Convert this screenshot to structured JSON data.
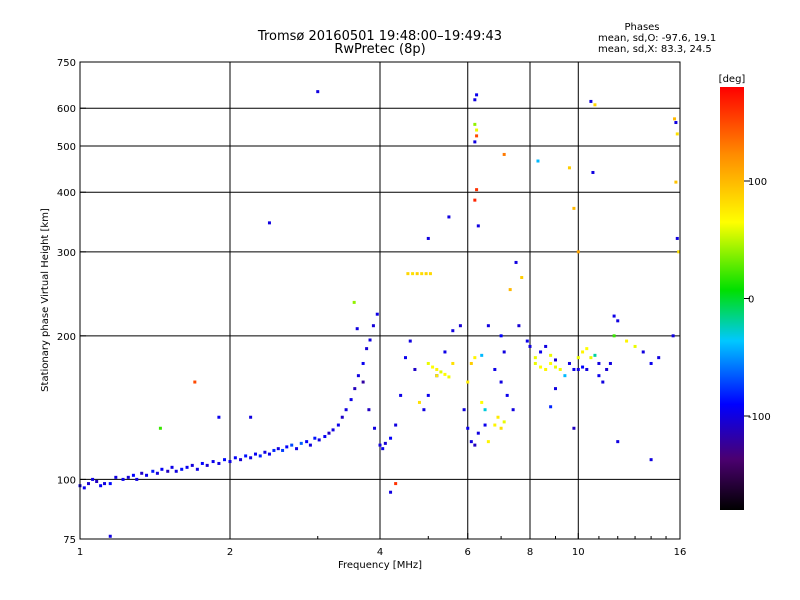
{
  "title": "Tromsø 20160501 19:48:00–19:49:43",
  "subtitle": "RwPretec (8p)",
  "phase_info": {
    "heading": "Phases",
    "line_o": "mean, sd,O: -97.6, 19.1",
    "line_x": "mean, sd,X:  83.3, 24.5"
  },
  "chart_data": {
    "type": "scatter",
    "title": "Tromsø 20160501 19:48:00–19:49:43",
    "subtitle": "RwPretec (8p)",
    "xlabel": "Frequency [MHz]",
    "ylabel": "Stationary phase Virtual Height [km]",
    "xscale": "log",
    "yscale": "log",
    "xlim": [
      1,
      16
    ],
    "ylim": [
      75,
      750
    ],
    "x_ticks": [
      1,
      2,
      4,
      6,
      8,
      10,
      16
    ],
    "x_tick_labels": [
      "1",
      "2",
      "4",
      "6",
      "8",
      "10",
      "16"
    ],
    "y_ticks": [
      75,
      100,
      200,
      300,
      400,
      500,
      600,
      750
    ],
    "y_tick_labels": [
      "75",
      "100",
      "200",
      "300",
      "400",
      "500",
      "600",
      "750"
    ],
    "grid": true,
    "colorbar": {
      "label": "[deg]",
      "range": [
        -180,
        180
      ],
      "ticks": [
        -100,
        0,
        100
      ],
      "tick_labels": [
        "-100",
        "0",
        "100"
      ]
    },
    "points": [
      [
        1.0,
        97,
        -100
      ],
      [
        1.02,
        96,
        -95
      ],
      [
        1.04,
        98,
        -105
      ],
      [
        1.06,
        100,
        -98
      ],
      [
        1.08,
        99,
        -110
      ],
      [
        1.1,
        97,
        -92
      ],
      [
        1.12,
        98,
        -100
      ],
      [
        1.15,
        98,
        -88
      ],
      [
        1.18,
        101,
        -100
      ],
      [
        1.22,
        100,
        -96
      ],
      [
        1.25,
        101,
        -104
      ],
      [
        1.28,
        102,
        -90
      ],
      [
        1.3,
        100,
        -100
      ],
      [
        1.33,
        103,
        -108
      ],
      [
        1.36,
        102,
        -96
      ],
      [
        1.4,
        104,
        -85
      ],
      [
        1.43,
        103,
        -100
      ],
      [
        1.46,
        105,
        -92
      ],
      [
        1.5,
        104,
        -110
      ],
      [
        1.53,
        106,
        -98
      ],
      [
        1.56,
        104,
        -100
      ],
      [
        1.6,
        105,
        -86
      ],
      [
        1.64,
        106,
        -95
      ],
      [
        1.68,
        107,
        -102
      ],
      [
        1.72,
        105,
        -99
      ],
      [
        1.76,
        108,
        -90
      ],
      [
        1.8,
        107,
        -104
      ],
      [
        1.85,
        109,
        -96
      ],
      [
        1.9,
        108,
        -100
      ],
      [
        1.95,
        110,
        -88
      ],
      [
        2.0,
        109,
        -98
      ],
      [
        2.05,
        111,
        -92
      ],
      [
        2.1,
        110,
        -105
      ],
      [
        2.15,
        112,
        -86
      ],
      [
        2.2,
        111,
        -100
      ],
      [
        2.25,
        113,
        -94
      ],
      [
        2.3,
        112,
        -82
      ],
      [
        2.35,
        114,
        -100
      ],
      [
        2.4,
        113,
        -96
      ],
      [
        2.45,
        115,
        -80
      ],
      [
        2.5,
        116,
        -100
      ],
      [
        2.55,
        115,
        -74
      ],
      [
        2.6,
        117,
        -90
      ],
      [
        2.66,
        118,
        -70
      ],
      [
        2.72,
        116,
        -98
      ],
      [
        2.78,
        119,
        -65
      ],
      [
        2.85,
        120,
        -92
      ],
      [
        2.9,
        118,
        -100
      ],
      [
        2.96,
        122,
        -85
      ],
      [
        3.02,
        121,
        -100
      ],
      [
        3.1,
        123,
        -94
      ],
      [
        3.16,
        125,
        -110
      ],
      [
        3.22,
        127,
        -100
      ],
      [
        3.3,
        130,
        -96
      ],
      [
        3.36,
        135,
        -108
      ],
      [
        3.42,
        140,
        -100
      ],
      [
        3.5,
        147,
        -98
      ],
      [
        3.56,
        155,
        -112
      ],
      [
        3.62,
        165,
        -100
      ],
      [
        3.7,
        175,
        -95
      ],
      [
        3.76,
        188,
        -104
      ],
      [
        3.82,
        196,
        -100
      ],
      [
        3.88,
        210,
        -102
      ],
      [
        3.95,
        222,
        -98
      ],
      [
        3.55,
        235,
        40
      ],
      [
        3.6,
        207,
        -100
      ],
      [
        3.7,
        160,
        -120
      ],
      [
        3.8,
        140,
        -110
      ],
      [
        3.9,
        128,
        -100
      ],
      [
        4.0,
        118,
        -100
      ],
      [
        4.05,
        116,
        -96
      ],
      [
        4.1,
        119,
        -104
      ],
      [
        4.2,
        122,
        -92
      ],
      [
        4.3,
        130,
        -100
      ],
      [
        4.4,
        150,
        -98
      ],
      [
        4.5,
        180,
        -96
      ],
      [
        4.6,
        195,
        -100
      ],
      [
        4.7,
        170,
        -108
      ],
      [
        4.55,
        270,
        85
      ],
      [
        4.65,
        270,
        80
      ],
      [
        4.75,
        270,
        88
      ],
      [
        4.85,
        270,
        82
      ],
      [
        4.95,
        270,
        86
      ],
      [
        5.05,
        270,
        84
      ],
      [
        5.0,
        175,
        60
      ],
      [
        5.1,
        172,
        65
      ],
      [
        5.2,
        170,
        70
      ],
      [
        5.3,
        168,
        58
      ],
      [
        5.4,
        166,
        66
      ],
      [
        5.5,
        164,
        62
      ],
      [
        4.9,
        140,
        -100
      ],
      [
        5.0,
        150,
        -96
      ],
      [
        5.2,
        165,
        -100
      ],
      [
        5.4,
        185,
        -98
      ],
      [
        5.6,
        205,
        -100
      ],
      [
        5.8,
        210,
        -104
      ],
      [
        5.9,
        140,
        -100
      ],
      [
        6.0,
        128,
        -96
      ],
      [
        6.1,
        120,
        -100
      ],
      [
        6.2,
        118,
        -110
      ],
      [
        6.3,
        125,
        -100
      ],
      [
        6.5,
        130,
        -96
      ],
      [
        6.2,
        625,
        -100
      ],
      [
        6.25,
        640,
        -96
      ],
      [
        6.2,
        555,
        40
      ],
      [
        6.25,
        540,
        60
      ],
      [
        6.25,
        525,
        150
      ],
      [
        6.2,
        510,
        -100
      ],
      [
        6.25,
        405,
        160
      ],
      [
        6.2,
        385,
        165
      ],
      [
        6.3,
        340,
        -100
      ],
      [
        6.1,
        175,
        90
      ],
      [
        6.2,
        180,
        70
      ],
      [
        6.4,
        182,
        -40
      ],
      [
        6.6,
        210,
        -100
      ],
      [
        6.8,
        170,
        -98
      ],
      [
        7.0,
        160,
        -100
      ],
      [
        7.2,
        150,
        -96
      ],
      [
        7.4,
        140,
        -100
      ],
      [
        7.6,
        210,
        -104
      ],
      [
        7.0,
        200,
        -90
      ],
      [
        7.1,
        185,
        -100
      ],
      [
        7.3,
        250,
        100
      ],
      [
        7.5,
        285,
        -100
      ],
      [
        7.7,
        265,
        90
      ],
      [
        7.9,
        195,
        -96
      ],
      [
        6.8,
        130,
        70
      ],
      [
        6.9,
        135,
        75
      ],
      [
        7.0,
        128,
        80
      ],
      [
        7.1,
        132,
        60
      ],
      [
        6.6,
        120,
        70
      ],
      [
        6.4,
        145,
        65
      ],
      [
        8.0,
        190,
        -100
      ],
      [
        8.2,
        180,
        60
      ],
      [
        8.4,
        185,
        -96
      ],
      [
        8.6,
        190,
        -100
      ],
      [
        8.8,
        182,
        60
      ],
      [
        9.0,
        178,
        -104
      ],
      [
        8.2,
        175,
        60
      ],
      [
        8.4,
        172,
        65
      ],
      [
        8.6,
        170,
        70
      ],
      [
        8.8,
        175,
        65
      ],
      [
        9.0,
        172,
        60
      ],
      [
        9.2,
        170,
        62
      ],
      [
        9.4,
        165,
        -40
      ],
      [
        9.6,
        175,
        -100
      ],
      [
        9.8,
        170,
        -96
      ],
      [
        10.0,
        170,
        -100
      ],
      [
        10.2,
        172,
        -90
      ],
      [
        10.4,
        170,
        -100
      ],
      [
        10.0,
        180,
        60
      ],
      [
        10.2,
        185,
        70
      ],
      [
        10.4,
        188,
        65
      ],
      [
        10.6,
        180,
        60
      ],
      [
        10.8,
        182,
        -20
      ],
      [
        11.0,
        175,
        -100
      ],
      [
        11.0,
        165,
        -96
      ],
      [
        11.2,
        160,
        -100
      ],
      [
        11.4,
        170,
        -104
      ],
      [
        11.6,
        175,
        -100
      ],
      [
        11.8,
        220,
        -98
      ],
      [
        12.0,
        215,
        -100
      ],
      [
        9.6,
        450,
        90
      ],
      [
        9.8,
        370,
        100
      ],
      [
        10.0,
        300,
        110
      ],
      [
        10.6,
        620,
        -100
      ],
      [
        10.8,
        610,
        85
      ],
      [
        10.7,
        440,
        -100
      ],
      [
        12.5,
        195,
        70
      ],
      [
        13.0,
        190,
        60
      ],
      [
        13.5,
        185,
        -100
      ],
      [
        14.0,
        175,
        -96
      ],
      [
        14.5,
        180,
        -100
      ],
      [
        15.5,
        200,
        -100
      ],
      [
        15.6,
        570,
        100
      ],
      [
        15.7,
        560,
        -100
      ],
      [
        15.8,
        530,
        80
      ],
      [
        15.7,
        420,
        95
      ],
      [
        15.8,
        320,
        -100
      ],
      [
        15.9,
        300,
        80
      ],
      [
        3.0,
        650,
        -100
      ],
      [
        2.4,
        345,
        -100
      ],
      [
        5.0,
        320,
        -100
      ],
      [
        5.5,
        355,
        -100
      ],
      [
        7.1,
        480,
        130
      ],
      [
        8.3,
        465,
        -40
      ],
      [
        1.7,
        160,
        150
      ],
      [
        1.45,
        128,
        20
      ],
      [
        2.2,
        135,
        -100
      ],
      [
        1.9,
        135,
        -96
      ],
      [
        4.3,
        98,
        160
      ],
      [
        4.2,
        94,
        -100
      ],
      [
        4.8,
        145,
        80
      ],
      [
        5.2,
        165,
        75
      ],
      [
        5.6,
        175,
        80
      ],
      [
        6.0,
        160,
        75
      ],
      [
        9.0,
        155,
        -100
      ],
      [
        11.8,
        200,
        20
      ],
      [
        1.15,
        76,
        -100
      ],
      [
        12.0,
        120,
        -100
      ],
      [
        14.0,
        110,
        -100
      ],
      [
        6.5,
        140,
        -30
      ],
      [
        8.8,
        142,
        -80
      ],
      [
        9.8,
        128,
        -110
      ]
    ]
  }
}
